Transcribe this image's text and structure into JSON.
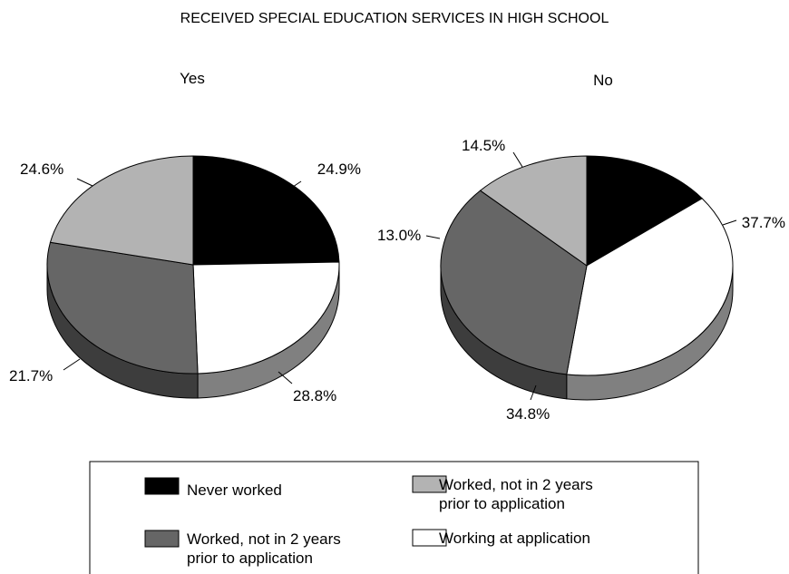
{
  "chart_data": {
    "type": "pie",
    "title": "RECEIVED SPECIAL EDUCATION SERVICES IN HIGH SCHOOL",
    "legend": [
      {
        "label_lines": [
          "Never worked"
        ],
        "color": "#000000"
      },
      {
        "label_lines": [
          "Worked, not in 2 years",
          "prior to application"
        ],
        "color": "#b3b3b3"
      },
      {
        "label_lines": [
          "Worked, not in 2 years",
          "prior to application"
        ],
        "color": "#666666"
      },
      {
        "label_lines": [
          "Working at application"
        ],
        "color": "#ffffff"
      }
    ],
    "pies": [
      {
        "name": "Yes",
        "slices": [
          {
            "category": 0,
            "value": 24.6,
            "label": "24.6%"
          },
          {
            "category": 3,
            "value": 24.9,
            "label": "24.9%"
          },
          {
            "category": 2,
            "value": 28.8,
            "label": "28.8%"
          },
          {
            "category": 1,
            "value": 21.7,
            "label": "21.7%"
          }
        ]
      },
      {
        "name": "No",
        "slices": [
          {
            "category": 0,
            "value": 14.5,
            "label": "14.5%"
          },
          {
            "category": 3,
            "value": 37.7,
            "label": "37.7%"
          },
          {
            "category": 2,
            "value": 34.8,
            "label": "34.8%"
          },
          {
            "category": 1,
            "value": 13.0,
            "label": "13.0%"
          }
        ]
      }
    ]
  }
}
